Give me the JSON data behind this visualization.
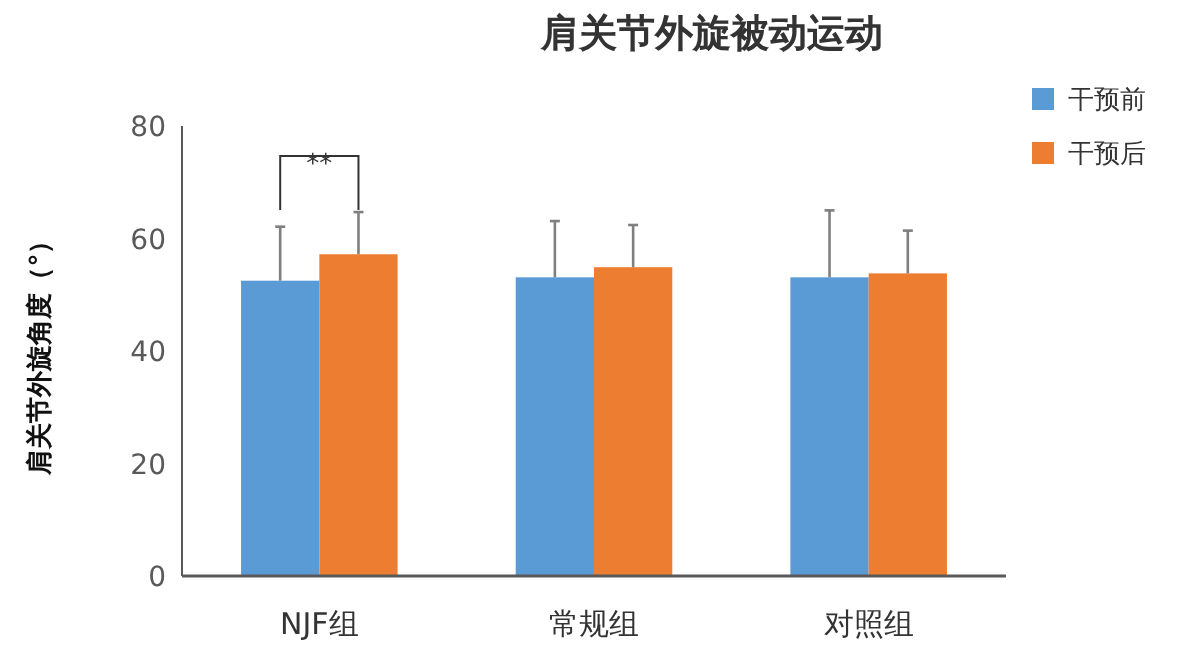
{
  "chart_data": {
    "type": "bar",
    "title": "肩关节外旋被动运动",
    "ylabel": "肩关节外旋角度（°）",
    "categories": [
      "NJF组",
      "常规组",
      "对照组"
    ],
    "series": [
      {
        "name": "干预前",
        "color": "#5b9bd5",
        "values": [
          52.5,
          53.1,
          53.1
        ],
        "errors": [
          [
            52.5,
            62.1
          ],
          [
            53.1,
            63.1
          ],
          [
            53.1,
            65.0
          ]
        ]
      },
      {
        "name": "干预后",
        "color": "#ed7d31",
        "values": [
          57.2,
          54.9,
          53.8
        ],
        "errors": [
          [
            57.2,
            64.7
          ],
          [
            54.9,
            62.4
          ],
          [
            53.8,
            61.4
          ]
        ]
      }
    ],
    "ylim": [
      0,
      80
    ],
    "yticks": [
      0,
      20,
      40,
      60,
      80
    ],
    "grid": false,
    "legend": "top right",
    "annotations": [
      "**"
    ]
  }
}
